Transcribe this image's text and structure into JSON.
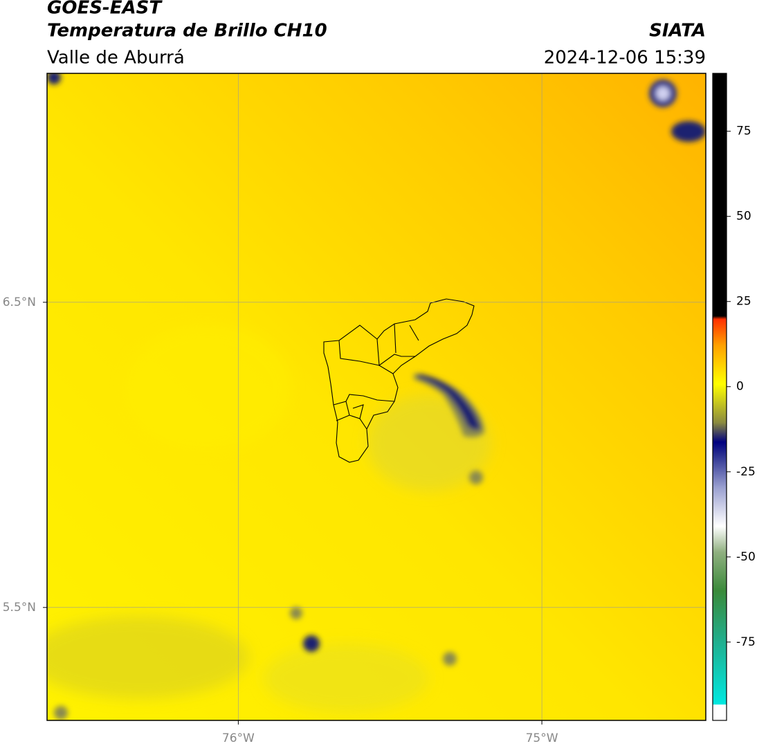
{
  "header": {
    "satellite": "GOES-EAST",
    "product": "Temperatura de Brillo CH10",
    "agency": "SIATA",
    "region": "Valle de Aburrá",
    "datetime": "2024-12-06 15:39"
  },
  "map": {
    "lonlim": [
      -76.63,
      -74.46
    ],
    "latlim": [
      5.13,
      7.25
    ],
    "lon_ticks": [
      {
        "value": -76,
        "label": "76°W"
      },
      {
        "value": -75,
        "label": "75°W"
      }
    ],
    "lat_ticks": [
      {
        "value": 6.5,
        "label": "6.5°N"
      },
      {
        "value": 5.5,
        "label": "5.5°N"
      }
    ]
  },
  "colorbar": {
    "range": [
      -98,
      92
    ],
    "ticks": [
      75,
      50,
      25,
      0,
      -25,
      -50,
      -75
    ]
  }
}
